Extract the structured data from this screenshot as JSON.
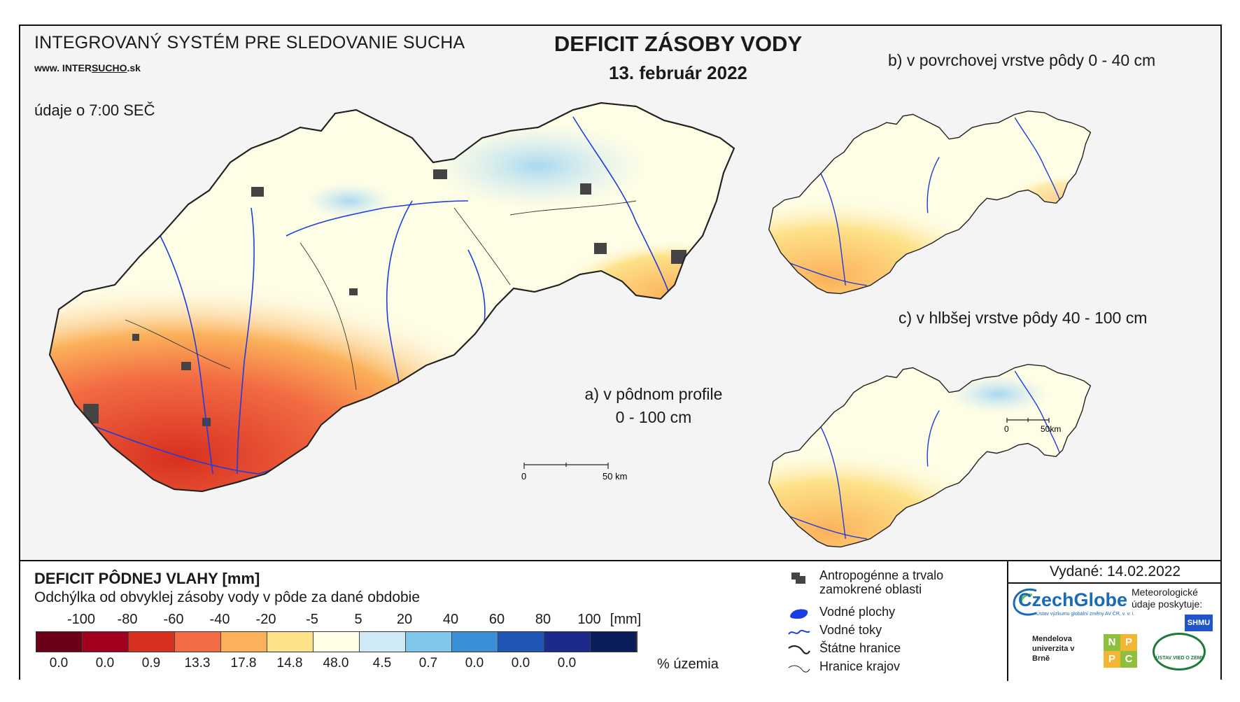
{
  "header": {
    "system_name": "INTEGROVANÝ SYSTÉM PRE SLEDOVANIE SUCHA",
    "website_prefix": "www. INTER",
    "website_underlined": "SUCHO",
    "website_suffix": ".sk",
    "time_note": "údaje o 7:00 SEČ",
    "title": "DEFICIT ZÁSOBY VODY",
    "date": "13. február 2022"
  },
  "maps": {
    "a_line1": "a) v pôdnom profile",
    "a_line2": "0 - 100 cm",
    "b_label": "b) v povrchovej vrstve pôdy 0 - 40 cm",
    "c_label": "c) v hlbšej vrstve pôdy 40 - 100 cm",
    "scale_main_zero": "0",
    "scale_main_end": "50 km",
    "scale_small_zero": "0",
    "scale_small_end": "50km"
  },
  "legend": {
    "title": "DEFICIT PÔDNEJ VLAHY [mm]",
    "subtitle": "Odchýlka od obvyklej zásoby vody v pôde za dané obdobie",
    "scale_values": [
      "-100",
      "-80",
      "-60",
      "-40",
      "-20",
      "-5",
      "5",
      "20",
      "40",
      "60",
      "80",
      "100"
    ],
    "scale_unit": "[mm]",
    "colors": [
      "#6b0016",
      "#a3001d",
      "#d7301f",
      "#f26b43",
      "#fbb15a",
      "#fde28a",
      "#fefde6",
      "#cfe9f5",
      "#7ec6ea",
      "#3b8fd6",
      "#1f55b5",
      "#1c2a8c",
      "#0b1d5a"
    ],
    "percent_values": [
      "0.0",
      "0.0",
      "0.9",
      "13.3",
      "17.8",
      "14.8",
      "48.0",
      "4.5",
      "0.7",
      "0.0",
      "0.0",
      "0.0"
    ],
    "percent_unit": "% územia"
  },
  "symbols": {
    "urban": "Antropogénne a trvalo zamokrené oblasti",
    "water_bodies": "Vodné plochy",
    "streams": "Vodné toky",
    "state_border": "Štátne hranice",
    "region_border": "Hranice krajov"
  },
  "credits": {
    "issued": "Vydané: 14.02.2022",
    "czechglobe": "CzechGlobe",
    "czechglobe_sub": "Ústav výzkumu globální změny AV ČR, v. v. i.",
    "meteo_note": "Meteorologické údaje poskytuje:",
    "shmu": "SHMU",
    "mendel": "Mendelova univerzita v Brně",
    "nppc_letters": [
      "N",
      "P",
      "P",
      "C"
    ],
    "uvz": "ÚSTAV VIED O ZEMI"
  }
}
